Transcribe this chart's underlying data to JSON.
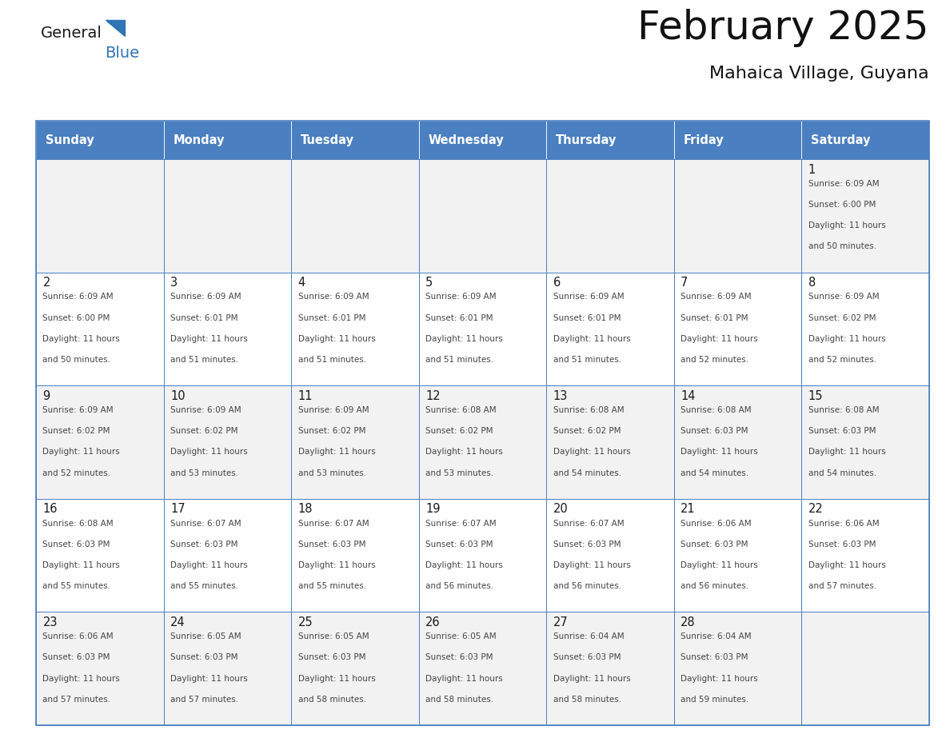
{
  "title": "February 2025",
  "subtitle": "Mahaica Village, Guyana",
  "header_color": "#4a7fc1",
  "header_text_color": "#FFFFFF",
  "days_of_week": [
    "Sunday",
    "Monday",
    "Tuesday",
    "Wednesday",
    "Thursday",
    "Friday",
    "Saturday"
  ],
  "background_color": "#FFFFFF",
  "cell_bg_white": "#FFFFFF",
  "cell_bg_gray": "#F2F2F2",
  "grid_color": "#4a7fc1",
  "text_color": "#444444",
  "day_number_color": "#1a1a1a",
  "logo_general_color": "#1a1a1a",
  "logo_blue_color": "#2E75B6",
  "calendar_data": [
    [
      null,
      null,
      null,
      null,
      null,
      null,
      {
        "day": 1,
        "sunrise": "6:09 AM",
        "sunset": "6:00 PM",
        "daylight_line1": "Daylight: 11 hours",
        "daylight_line2": "and 50 minutes."
      }
    ],
    [
      {
        "day": 2,
        "sunrise": "6:09 AM",
        "sunset": "6:00 PM",
        "daylight_line1": "Daylight: 11 hours",
        "daylight_line2": "and 50 minutes."
      },
      {
        "day": 3,
        "sunrise": "6:09 AM",
        "sunset": "6:01 PM",
        "daylight_line1": "Daylight: 11 hours",
        "daylight_line2": "and 51 minutes."
      },
      {
        "day": 4,
        "sunrise": "6:09 AM",
        "sunset": "6:01 PM",
        "daylight_line1": "Daylight: 11 hours",
        "daylight_line2": "and 51 minutes."
      },
      {
        "day": 5,
        "sunrise": "6:09 AM",
        "sunset": "6:01 PM",
        "daylight_line1": "Daylight: 11 hours",
        "daylight_line2": "and 51 minutes."
      },
      {
        "day": 6,
        "sunrise": "6:09 AM",
        "sunset": "6:01 PM",
        "daylight_line1": "Daylight: 11 hours",
        "daylight_line2": "and 51 minutes."
      },
      {
        "day": 7,
        "sunrise": "6:09 AM",
        "sunset": "6:01 PM",
        "daylight_line1": "Daylight: 11 hours",
        "daylight_line2": "and 52 minutes."
      },
      {
        "day": 8,
        "sunrise": "6:09 AM",
        "sunset": "6:02 PM",
        "daylight_line1": "Daylight: 11 hours",
        "daylight_line2": "and 52 minutes."
      }
    ],
    [
      {
        "day": 9,
        "sunrise": "6:09 AM",
        "sunset": "6:02 PM",
        "daylight_line1": "Daylight: 11 hours",
        "daylight_line2": "and 52 minutes."
      },
      {
        "day": 10,
        "sunrise": "6:09 AM",
        "sunset": "6:02 PM",
        "daylight_line1": "Daylight: 11 hours",
        "daylight_line2": "and 53 minutes."
      },
      {
        "day": 11,
        "sunrise": "6:09 AM",
        "sunset": "6:02 PM",
        "daylight_line1": "Daylight: 11 hours",
        "daylight_line2": "and 53 minutes."
      },
      {
        "day": 12,
        "sunrise": "6:08 AM",
        "sunset": "6:02 PM",
        "daylight_line1": "Daylight: 11 hours",
        "daylight_line2": "and 53 minutes."
      },
      {
        "day": 13,
        "sunrise": "6:08 AM",
        "sunset": "6:02 PM",
        "daylight_line1": "Daylight: 11 hours",
        "daylight_line2": "and 54 minutes."
      },
      {
        "day": 14,
        "sunrise": "6:08 AM",
        "sunset": "6:03 PM",
        "daylight_line1": "Daylight: 11 hours",
        "daylight_line2": "and 54 minutes."
      },
      {
        "day": 15,
        "sunrise": "6:08 AM",
        "sunset": "6:03 PM",
        "daylight_line1": "Daylight: 11 hours",
        "daylight_line2": "and 54 minutes."
      }
    ],
    [
      {
        "day": 16,
        "sunrise": "6:08 AM",
        "sunset": "6:03 PM",
        "daylight_line1": "Daylight: 11 hours",
        "daylight_line2": "and 55 minutes."
      },
      {
        "day": 17,
        "sunrise": "6:07 AM",
        "sunset": "6:03 PM",
        "daylight_line1": "Daylight: 11 hours",
        "daylight_line2": "and 55 minutes."
      },
      {
        "day": 18,
        "sunrise": "6:07 AM",
        "sunset": "6:03 PM",
        "daylight_line1": "Daylight: 11 hours",
        "daylight_line2": "and 55 minutes."
      },
      {
        "day": 19,
        "sunrise": "6:07 AM",
        "sunset": "6:03 PM",
        "daylight_line1": "Daylight: 11 hours",
        "daylight_line2": "and 56 minutes."
      },
      {
        "day": 20,
        "sunrise": "6:07 AM",
        "sunset": "6:03 PM",
        "daylight_line1": "Daylight: 11 hours",
        "daylight_line2": "and 56 minutes."
      },
      {
        "day": 21,
        "sunrise": "6:06 AM",
        "sunset": "6:03 PM",
        "daylight_line1": "Daylight: 11 hours",
        "daylight_line2": "and 56 minutes."
      },
      {
        "day": 22,
        "sunrise": "6:06 AM",
        "sunset": "6:03 PM",
        "daylight_line1": "Daylight: 11 hours",
        "daylight_line2": "and 57 minutes."
      }
    ],
    [
      {
        "day": 23,
        "sunrise": "6:06 AM",
        "sunset": "6:03 PM",
        "daylight_line1": "Daylight: 11 hours",
        "daylight_line2": "and 57 minutes."
      },
      {
        "day": 24,
        "sunrise": "6:05 AM",
        "sunset": "6:03 PM",
        "daylight_line1": "Daylight: 11 hours",
        "daylight_line2": "and 57 minutes."
      },
      {
        "day": 25,
        "sunrise": "6:05 AM",
        "sunset": "6:03 PM",
        "daylight_line1": "Daylight: 11 hours",
        "daylight_line2": "and 58 minutes."
      },
      {
        "day": 26,
        "sunrise": "6:05 AM",
        "sunset": "6:03 PM",
        "daylight_line1": "Daylight: 11 hours",
        "daylight_line2": "and 58 minutes."
      },
      {
        "day": 27,
        "sunrise": "6:04 AM",
        "sunset": "6:03 PM",
        "daylight_line1": "Daylight: 11 hours",
        "daylight_line2": "and 58 minutes."
      },
      {
        "day": 28,
        "sunrise": "6:04 AM",
        "sunset": "6:03 PM",
        "daylight_line1": "Daylight: 11 hours",
        "daylight_line2": "and 59 minutes."
      },
      null
    ]
  ],
  "figsize": [
    11.88,
    9.18
  ],
  "dpi": 100
}
